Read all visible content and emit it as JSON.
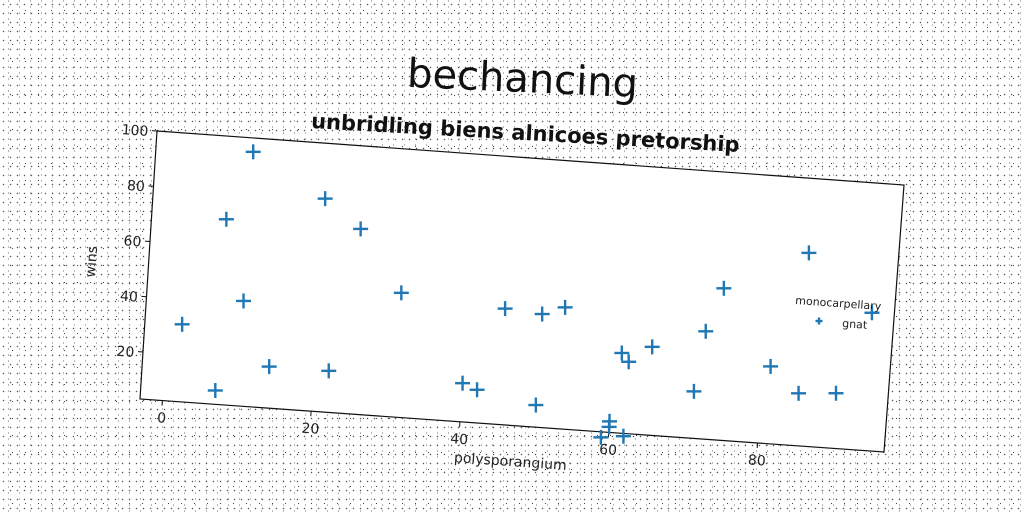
{
  "chart_data": {
    "type": "scatter",
    "title": "bechancing",
    "subtitle": "unbridling biens alnicoes pretorship",
    "xlabel": "polysporangium",
    "ylabel": "wins",
    "xlim": [
      -3,
      97
    ],
    "ylim": [
      3,
      100
    ],
    "xticks": [
      "0",
      "20",
      "40",
      "60",
      "80"
    ],
    "yticks": [
      "20",
      "40",
      "60",
      "80",
      "100"
    ],
    "grid": false,
    "legend": {
      "title": "monocarpellary",
      "placement": "right"
    },
    "series": [
      {
        "name": "gnat",
        "color": "#1f77b4",
        "marker": "plus",
        "points": [
          {
            "x": 10,
            "y": 95
          },
          {
            "x": 7,
            "y": 70
          },
          {
            "x": 20,
            "y": 80
          },
          {
            "x": 25,
            "y": 70
          },
          {
            "x": 10,
            "y": 41
          },
          {
            "x": 2,
            "y": 31
          },
          {
            "x": 7,
            "y": 8
          },
          {
            "x": 14,
            "y": 18
          },
          {
            "x": 22,
            "y": 18
          },
          {
            "x": 31,
            "y": 48
          },
          {
            "x": 40,
            "y": 17
          },
          {
            "x": 42,
            "y": 15
          },
          {
            "x": 45,
            "y": 45
          },
          {
            "x": 50,
            "y": 44
          },
          {
            "x": 53,
            "y": 47
          },
          {
            "x": 50,
            "y": 11
          },
          {
            "x": 60,
            "y": 7
          },
          {
            "x": 60,
            "y": 5
          },
          {
            "x": 59,
            "y": 1
          },
          {
            "x": 62,
            "y": 2
          },
          {
            "x": 61,
            "y": 32
          },
          {
            "x": 62,
            "y": 29
          },
          {
            "x": 65,
            "y": 35
          },
          {
            "x": 71,
            "y": 20
          },
          {
            "x": 72,
            "y": 42
          },
          {
            "x": 74,
            "y": 58
          },
          {
            "x": 81,
            "y": 31
          },
          {
            "x": 85,
            "y": 73
          },
          {
            "x": 85,
            "y": 22
          },
          {
            "x": 90,
            "y": 23
          },
          {
            "x": 94,
            "y": 53
          }
        ]
      }
    ]
  }
}
